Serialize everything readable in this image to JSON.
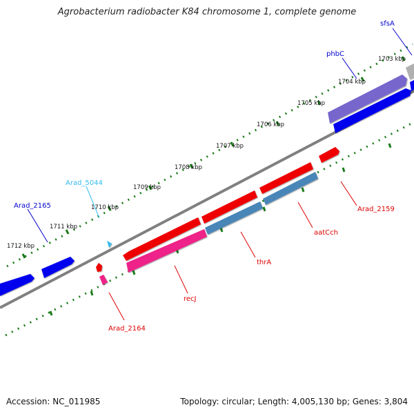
{
  "title": "Agrobacterium radiobacter K84 chromosome 1, complete genome",
  "footer": {
    "accession": "Accession: NC_011985",
    "summary": "Topology: circular; Length: 4,005,130 bp; Genes: 3,804"
  },
  "ruler_labels": [
    "1703 kbp",
    "1704 kbp",
    "1705 kbp",
    "1706 kbp",
    "1707 kbp",
    "1708 kbp",
    "1709 kbp",
    "1710 kbp",
    "1711 kbp",
    "1712 kbp"
  ],
  "gene_labels": [
    {
      "name": "sfsA",
      "color": "#0000cc"
    },
    {
      "name": "phbC",
      "color": "#0000cc"
    },
    {
      "name": "Arad_5044",
      "color": "#33bbee"
    },
    {
      "name": "Arad_2165",
      "color": "#0000cc"
    },
    {
      "name": "Arad_2159",
      "color": "#dd0000"
    },
    {
      "name": "aatCch",
      "color": "#dd0000"
    },
    {
      "name": "thrA",
      "color": "#dd0000"
    },
    {
      "name": "recJ",
      "color": "#dd0000"
    },
    {
      "name": "Arad_2164",
      "color": "#dd0000"
    }
  ],
  "colors": {
    "backbone": "#808080",
    "ruler_ticks": "#1a7a1a",
    "forward_blue": "#0000ee",
    "purple": "#7766cc",
    "grey_gene": "#b0b0b0",
    "red": "#ee0000",
    "steel_blue": "#4a86b8",
    "magenta": "#ee2288",
    "cyan": "#33bbee"
  }
}
